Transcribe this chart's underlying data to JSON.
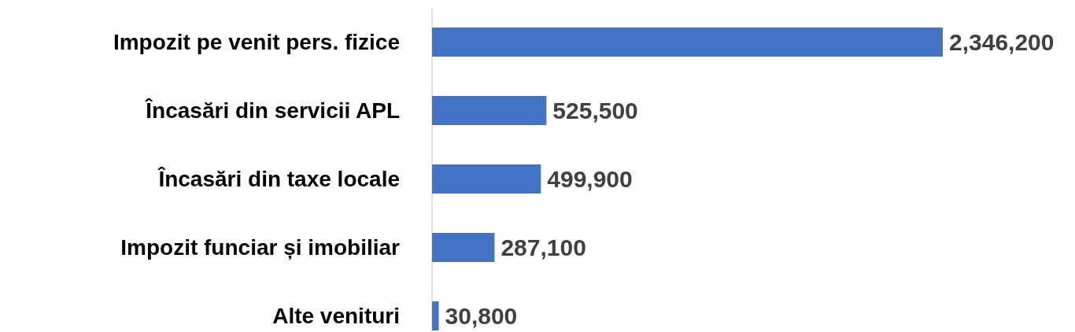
{
  "chart_data": {
    "type": "bar",
    "orientation": "horizontal",
    "categories": [
      "Impozit pe venit pers. fizice",
      "Încasări din servicii APL",
      "Încasări din taxe locale",
      "Impozit funciar și imobiliar",
      "Alte venituri"
    ],
    "values": [
      2346200,
      525500,
      499900,
      287100,
      30800
    ],
    "color": "#4472c4",
    "value_labels": [
      "2,346,200",
      "525,500",
      "499,900",
      "287,100",
      "30,800"
    ]
  }
}
